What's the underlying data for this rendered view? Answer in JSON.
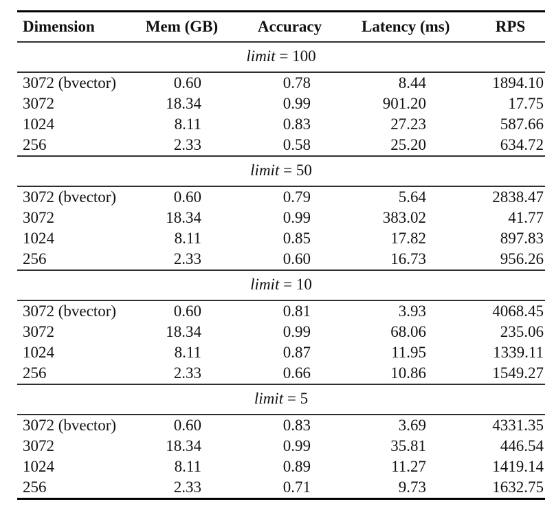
{
  "table": {
    "headers": [
      "Dimension",
      "Mem (GB)",
      "Accuracy",
      "Latency (ms)",
      "RPS"
    ],
    "sections": [
      {
        "title": {
          "var": "limit",
          "rest": "= 100"
        },
        "rows": [
          [
            "3072 (bvector)",
            "0.60",
            "0.78",
            "8.44",
            "1894.10"
          ],
          [
            "3072",
            "18.34",
            "0.99",
            "901.20",
            "17.75"
          ],
          [
            "1024",
            "8.11",
            "0.83",
            "27.23",
            "587.66"
          ],
          [
            "256",
            "2.33",
            "0.58",
            "25.20",
            "634.72"
          ]
        ]
      },
      {
        "title": {
          "var": "limit",
          "rest": "= 50"
        },
        "rows": [
          [
            "3072 (bvector)",
            "0.60",
            "0.79",
            "5.64",
            "2838.47"
          ],
          [
            "3072",
            "18.34",
            "0.99",
            "383.02",
            "41.77"
          ],
          [
            "1024",
            "8.11",
            "0.85",
            "17.82",
            "897.83"
          ],
          [
            "256",
            "2.33",
            "0.60",
            "16.73",
            "956.26"
          ]
        ]
      },
      {
        "title": {
          "var": "limit",
          "rest": "= 10"
        },
        "rows": [
          [
            "3072 (bvector)",
            "0.60",
            "0.81",
            "3.93",
            "4068.45"
          ],
          [
            "3072",
            "18.34",
            "0.99",
            "68.06",
            "235.06"
          ],
          [
            "1024",
            "8.11",
            "0.87",
            "11.95",
            "1339.11"
          ],
          [
            "256",
            "2.33",
            "0.66",
            "10.86",
            "1549.27"
          ]
        ]
      },
      {
        "title": {
          "var": "limit",
          "rest": "= 5"
        },
        "rows": [
          [
            "3072 (bvector)",
            "0.60",
            "0.83",
            "3.69",
            "4331.35"
          ],
          [
            "3072",
            "18.34",
            "0.99",
            "35.81",
            "446.54"
          ],
          [
            "1024",
            "8.11",
            "0.89",
            "11.27",
            "1419.14"
          ],
          [
            "256",
            "2.33",
            "0.71",
            "9.73",
            "1632.75"
          ]
        ]
      }
    ],
    "colors": {
      "heavy_rule": "#000000",
      "light_rule": "#2f2f2f",
      "text": "#111111",
      "background": "#ffffff"
    }
  }
}
